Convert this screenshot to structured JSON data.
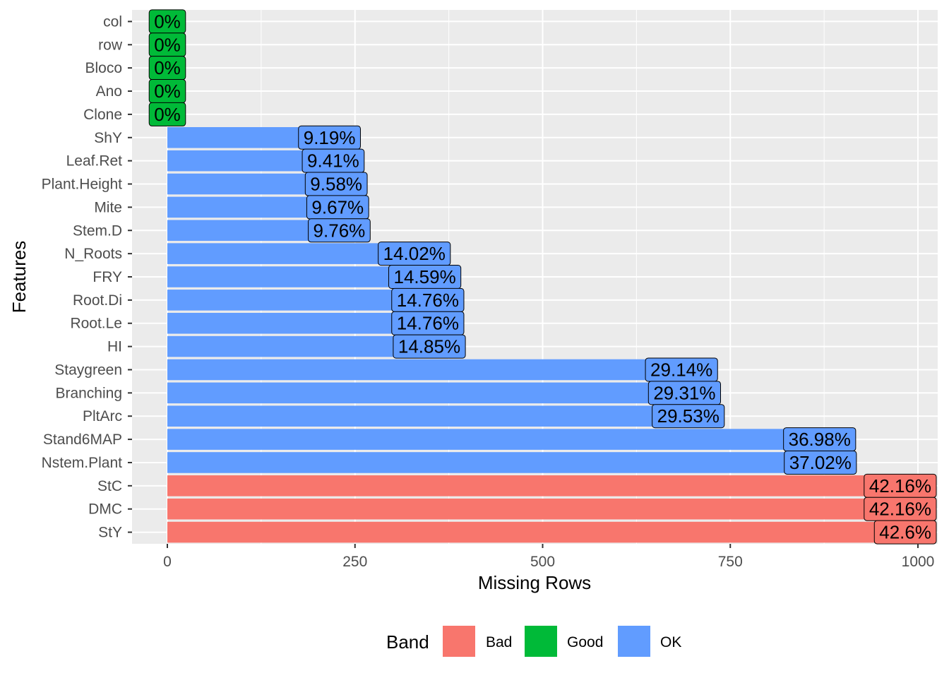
{
  "chart_data": {
    "type": "bar",
    "orientation": "horizontal",
    "xlabel": "Missing Rows",
    "ylabel": "Features",
    "xlim": [
      -48,
      1028
    ],
    "x_ticks": [
      0,
      250,
      500,
      750,
      1000
    ],
    "grid": true,
    "legend": {
      "title": "Band",
      "position": "bottom",
      "entries": [
        {
          "label": "Bad",
          "color": "#F8766D"
        },
        {
          "label": "Good",
          "color": "#00BA38"
        },
        {
          "label": "OK",
          "color": "#619CFF"
        }
      ]
    },
    "band_colors": {
      "Bad": "#F8766D",
      "Good": "#00BA38",
      "OK": "#619CFF"
    },
    "categories": [
      "col",
      "row",
      "Bloco",
      "Ano",
      "Clone",
      "ShY",
      "Leaf.Ret",
      "Plant.Height",
      "Mite",
      "Stem.D",
      "N_Roots",
      "FRY",
      "Root.Di",
      "Root.Le",
      "HI",
      "Staygreen",
      "Branching",
      "PltArc",
      "Stand6MAP",
      "Nstem.Plant",
      "StC",
      "DMC",
      "StY"
    ],
    "values": [
      0,
      0,
      0,
      0,
      0,
      216,
      221,
      225,
      227,
      229,
      329,
      343,
      347,
      347,
      349,
      685,
      689,
      694,
      869,
      870,
      991,
      991,
      1001
    ],
    "labels": [
      "0%",
      "0%",
      "0%",
      "0%",
      "0%",
      "9.19%",
      "9.41%",
      "9.58%",
      "9.67%",
      "9.76%",
      "14.02%",
      "14.59%",
      "14.76%",
      "14.76%",
      "14.85%",
      "29.14%",
      "29.31%",
      "29.53%",
      "36.98%",
      "37.02%",
      "42.16%",
      "42.16%",
      "42.6%"
    ],
    "bands": [
      "Good",
      "Good",
      "Good",
      "Good",
      "Good",
      "OK",
      "OK",
      "OK",
      "OK",
      "OK",
      "OK",
      "OK",
      "OK",
      "OK",
      "OK",
      "OK",
      "OK",
      "OK",
      "OK",
      "OK",
      "Bad",
      "Bad",
      "Bad"
    ]
  }
}
